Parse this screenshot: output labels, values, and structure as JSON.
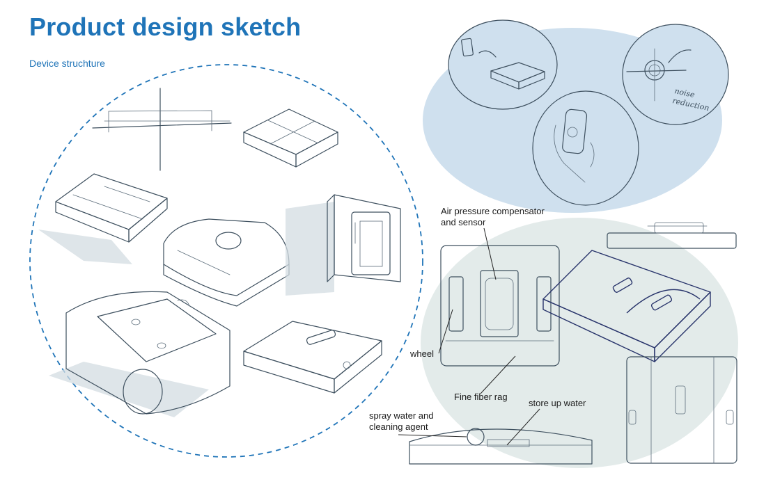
{
  "title": "Product design sketch",
  "subtitle": "Device struchture",
  "callouts": {
    "noise_reduction": "noise reduction",
    "air_pressure": "Air pressure compensator and sensor",
    "wheel": "wheel",
    "fine_fiber_rag": "Fine fiber rag",
    "store_up_water": "store up water",
    "spray_water": "spray water and cleaning agent"
  },
  "colors": {
    "title": "#1f74b8",
    "dashed_circle": "#1f74b8",
    "blue_bubble": "#cfe0ee",
    "grey_bubble": "#e3ebea",
    "sketch_ink": "#3d4f5e",
    "highlight_ink": "#28346b"
  }
}
